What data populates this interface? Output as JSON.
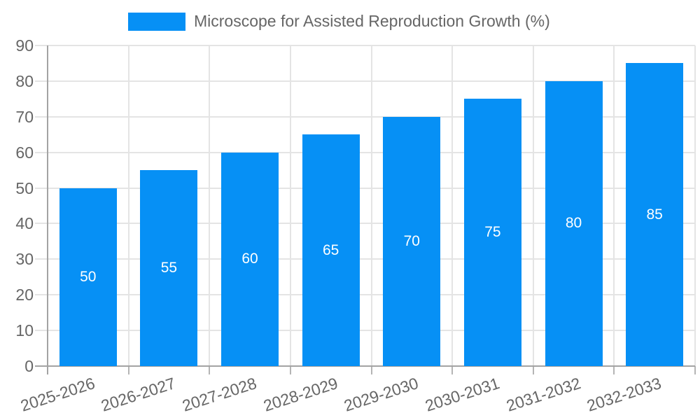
{
  "legend": {
    "label": "Microscope for Assisted Reproduction Growth (%)"
  },
  "chart_data": {
    "type": "bar",
    "title": "Microscope for Assisted Reproduction Growth (%)",
    "series_name": "Microscope for Assisted Reproduction Growth (%)",
    "categories": [
      "2025-2026",
      "2026-2027",
      "2027-2028",
      "2028-2029",
      "2029-2030",
      "2030-2031",
      "2031-2032",
      "2032-2033"
    ],
    "values": [
      50,
      55,
      60,
      65,
      70,
      75,
      80,
      85
    ],
    "value_labels": [
      "50",
      "55",
      "60",
      "65",
      "70",
      "75",
      "80",
      "85"
    ],
    "ylabel": "",
    "xlabel": "",
    "ylim": [
      0,
      90
    ],
    "ytick_step": 10,
    "yticks": [
      "0",
      "10",
      "20",
      "30",
      "40",
      "50",
      "60",
      "70",
      "80",
      "90"
    ],
    "grid": true,
    "legend_position": "top",
    "x_label_rotation_deg": -18,
    "colors": {
      "bar": "#0690f5",
      "value_label": "#ffffff",
      "tick_label": "#666666",
      "legend_text": "#666666",
      "gridline": "#e4e4e4",
      "axis_line": "#a3a3a3",
      "tick_mark": "#b5b5b5",
      "background": "#ffffff"
    }
  }
}
